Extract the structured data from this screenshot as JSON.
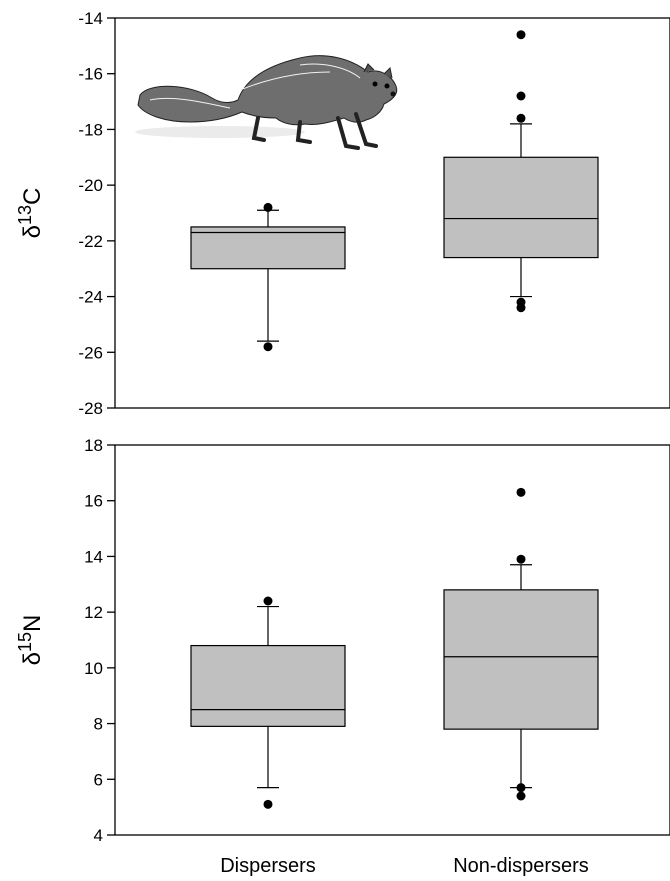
{
  "chart_data": [
    {
      "type": "box",
      "ylabel": "δ13C",
      "ylabel_symbol": "δ",
      "ylabel_sup": "13",
      "ylabel_main": "C",
      "ylim": [
        -28,
        -14
      ],
      "yticks": [
        -14,
        -16,
        -18,
        -20,
        -22,
        -24,
        -26,
        -28
      ],
      "categories": [
        "Dispersers",
        "Non-dispersers"
      ],
      "boxes": [
        {
          "name": "Dispersers",
          "whisker_low": -25.6,
          "q1": -23.0,
          "median": -21.7,
          "q3": -21.5,
          "whisker_high": -20.9,
          "outliers": [
            -20.8,
            -25.8
          ]
        },
        {
          "name": "Non-dispersers",
          "whisker_low": -24.0,
          "q1": -22.6,
          "median": -21.2,
          "q3": -19.0,
          "whisker_high": -17.8,
          "outliers": [
            -14.6,
            -16.8,
            -17.6,
            -24.2,
            -24.4
          ]
        }
      ],
      "box_fill": "#c0c0c0",
      "has_inset_illustration": true,
      "illustration": "fisher-animal-drawing"
    },
    {
      "type": "box",
      "ylabel": "δ15N",
      "ylabel_symbol": "δ",
      "ylabel_sup": "15",
      "ylabel_main": "N",
      "ylim": [
        4,
        18
      ],
      "yticks": [
        18,
        16,
        14,
        12,
        10,
        8,
        6,
        4
      ],
      "categories": [
        "Dispersers",
        "Non-dispersers"
      ],
      "boxes": [
        {
          "name": "Dispersers",
          "whisker_low": 5.7,
          "q1": 7.9,
          "median": 8.5,
          "q3": 10.8,
          "whisker_high": 12.2,
          "outliers": [
            12.4,
            5.1
          ]
        },
        {
          "name": "Non-dispersers",
          "whisker_low": 5.7,
          "q1": 7.8,
          "median": 10.4,
          "q3": 12.8,
          "whisker_high": 13.7,
          "outliers": [
            16.3,
            13.9,
            5.7,
            5.4
          ]
        }
      ],
      "box_fill": "#c0c0c0"
    }
  ]
}
